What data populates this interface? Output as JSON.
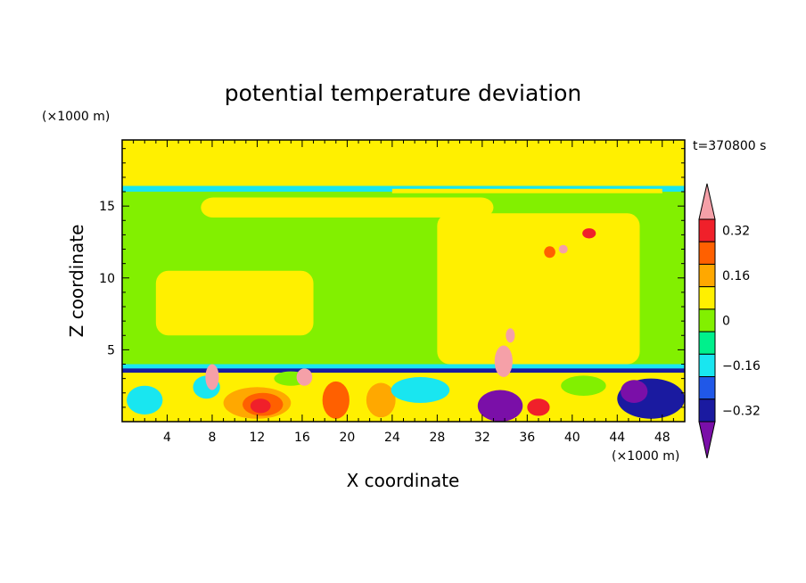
{
  "chart_data": {
    "type": "heatmap",
    "title": "potential temperature deviation",
    "time_label": "t=370800 s",
    "xlabel": "X coordinate",
    "ylabel": "Z coordinate",
    "x_unit": "(×1000 m)",
    "y_unit": "(×1000 m)",
    "xlim": [
      0,
      50
    ],
    "ylim": [
      0,
      19.6
    ],
    "x_ticks": [
      4,
      8,
      12,
      16,
      20,
      24,
      28,
      32,
      36,
      40,
      44,
      48
    ],
    "y_ticks": [
      5,
      10,
      15
    ],
    "colorbar": {
      "levels": [
        -0.4,
        -0.32,
        -0.24,
        -0.16,
        -0.08,
        0,
        0.08,
        0.16,
        0.24,
        0.32,
        0.4
      ],
      "labels": [
        "0.32",
        "0.16",
        "0",
        "−0.16",
        "−0.32"
      ],
      "label_values": [
        0.32,
        0.16,
        0,
        -0.16,
        -0.32
      ],
      "colors": [
        "#7a0fa8",
        "#1a1aa0",
        "#2058e8",
        "#19e6f0",
        "#00f08c",
        "#82f000",
        "#fff000",
        "#ffa800",
        "#ff6000",
        "#f0202a",
        "#f5a0a8"
      ],
      "extend": "both"
    },
    "background_class_index": 5,
    "regions": [
      {
        "x": [
          0,
          50
        ],
        "z": [
          0,
          19.6
        ],
        "level_index": 5
      },
      {
        "x": [
          0,
          50
        ],
        "z": [
          16.0,
          16.4
        ],
        "level_index": 3
      },
      {
        "x": [
          24,
          48
        ],
        "z": [
          15.9,
          16.2
        ],
        "level_index": 6
      },
      {
        "x": [
          0,
          50
        ],
        "z": [
          3.6,
          4.0
        ],
        "level_index": 3
      },
      {
        "x": [
          0,
          50
        ],
        "z": [
          3.4,
          3.7
        ],
        "level_index": 1
      },
      {
        "x": [
          0,
          50
        ],
        "z": [
          0,
          3.4
        ],
        "level_index": 6
      }
    ],
    "blobs": [
      {
        "cx": 12.0,
        "cz": 1.3,
        "rx": 3.0,
        "rz": 1.1,
        "level_index": 7
      },
      {
        "cx": 12.5,
        "cz": 1.2,
        "rx": 1.8,
        "rz": 0.8,
        "level_index": 8
      },
      {
        "cx": 12.3,
        "cz": 1.1,
        "rx": 0.9,
        "rz": 0.5,
        "level_index": 9
      },
      {
        "cx": 19.0,
        "cz": 1.5,
        "rx": 1.2,
        "rz": 1.3,
        "level_index": 8
      },
      {
        "cx": 23.0,
        "cz": 1.5,
        "rx": 1.3,
        "rz": 1.2,
        "level_index": 7
      },
      {
        "cx": 33.6,
        "cz": 1.1,
        "rx": 2.0,
        "rz": 1.1,
        "level_index": 0
      },
      {
        "cx": 37.0,
        "cz": 1.0,
        "rx": 1.0,
        "rz": 0.6,
        "level_index": 9
      },
      {
        "cx": 47.0,
        "cz": 1.6,
        "rx": 3.0,
        "rz": 1.4,
        "level_index": 1
      },
      {
        "cx": 45.5,
        "cz": 2.1,
        "rx": 1.2,
        "rz": 0.8,
        "level_index": 0
      },
      {
        "cx": 26.5,
        "cz": 2.2,
        "rx": 2.6,
        "rz": 0.9,
        "level_index": 3
      },
      {
        "cx": 2.0,
        "cz": 1.5,
        "rx": 1.6,
        "rz": 1.0,
        "level_index": 3
      },
      {
        "cx": 7.5,
        "cz": 2.4,
        "rx": 1.2,
        "rz": 0.8,
        "level_index": 3
      },
      {
        "cx": 15.0,
        "cz": 3.0,
        "rx": 1.5,
        "rz": 0.5,
        "level_index": 5
      },
      {
        "cx": 41.0,
        "cz": 2.5,
        "rx": 2.0,
        "rz": 0.7,
        "level_index": 5
      },
      {
        "cx": 8.0,
        "cz": 3.1,
        "rx": 0.6,
        "rz": 0.9,
        "level_index": 10
      },
      {
        "cx": 16.2,
        "cz": 3.1,
        "rx": 0.7,
        "rz": 0.6,
        "level_index": 10
      },
      {
        "cx": 33.9,
        "cz": 4.2,
        "rx": 0.8,
        "rz": 1.1,
        "level_index": 10
      },
      {
        "cx": 34.5,
        "cz": 6.0,
        "rx": 0.4,
        "rz": 0.5,
        "level_index": 10
      },
      {
        "cx": 38.0,
        "cz": 11.8,
        "rx": 0.5,
        "rz": 0.4,
        "level_index": 8
      },
      {
        "cx": 41.5,
        "cz": 13.1,
        "rx": 0.6,
        "rz": 0.35,
        "level_index": 9
      },
      {
        "cx": 39.2,
        "cz": 12.0,
        "rx": 0.4,
        "rz": 0.3,
        "level_index": 10
      }
    ],
    "upper_lighter_regions": [
      {
        "x": [
          25,
          47
        ],
        "z": [
          17.2,
          19.6
        ],
        "level_index": 5
      },
      {
        "x": [
          3,
          17
        ],
        "z": [
          6.0,
          10.5
        ],
        "level_index": 5
      },
      {
        "x": [
          28,
          46
        ],
        "z": [
          4.0,
          14.5
        ],
        "level_index": 5
      },
      {
        "x": [
          7,
          33
        ],
        "z": [
          14.2,
          15.6
        ],
        "level_index": 5
      }
    ]
  }
}
